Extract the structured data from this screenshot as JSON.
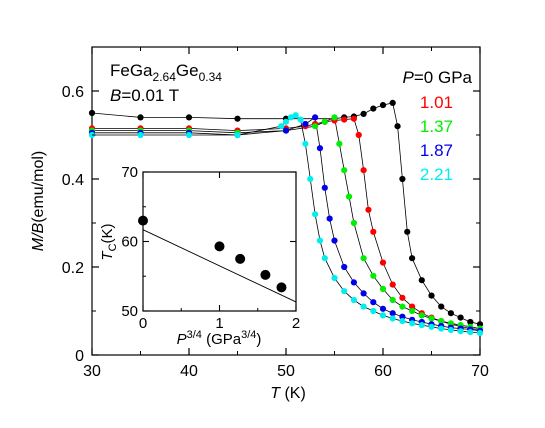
{
  "chart_data": [
    {
      "type": "scatter",
      "xlabel": "T (K)",
      "ylabel": "M/B(emu/mol)",
      "xlim": [
        30,
        70
      ],
      "ylim": [
        0,
        0.7
      ],
      "xticks": [
        "30",
        "40",
        "50",
        "60",
        "70"
      ],
      "yticks": [
        "0",
        "0.2",
        "0.4",
        "0.6"
      ],
      "annotations": {
        "sample": "FeGa2.64Ge0.34",
        "sample_parts": [
          "FeGa",
          "2.64",
          "Ge",
          "0.34"
        ],
        "field_label": "B",
        "field_value": "=0.01 T",
        "pressure_label": "P",
        "pressure_first": "=0 GPa"
      },
      "series": [
        {
          "name": "0 GPa",
          "label": "=0 GPa",
          "color": "#000000",
          "x": [
            30,
            35,
            40,
            45,
            50,
            55,
            56,
            57,
            58,
            59,
            60,
            61,
            61.5,
            62,
            62.5,
            63,
            64,
            65,
            66,
            67,
            68,
            69,
            70
          ],
          "y": [
            0.55,
            0.54,
            0.54,
            0.537,
            0.537,
            0.537,
            0.54,
            0.542,
            0.548,
            0.56,
            0.568,
            0.573,
            0.52,
            0.4,
            0.28,
            0.22,
            0.17,
            0.135,
            0.11,
            0.095,
            0.085,
            0.075,
            0.07
          ]
        },
        {
          "name": "1.01 GPa",
          "label": "1.01",
          "color": "#ff0000",
          "x": [
            30,
            35,
            40,
            45,
            50,
            52,
            53,
            54,
            55,
            56,
            57,
            57.5,
            58,
            58.5,
            59,
            60,
            61,
            62,
            63,
            64,
            65,
            66,
            67,
            68,
            69,
            70
          ],
          "y": [
            0.515,
            0.515,
            0.515,
            0.51,
            0.515,
            0.52,
            0.525,
            0.53,
            0.533,
            0.535,
            0.537,
            0.5,
            0.42,
            0.33,
            0.28,
            0.21,
            0.16,
            0.13,
            0.11,
            0.095,
            0.085,
            0.077,
            0.07,
            0.065,
            0.06,
            0.058
          ]
        },
        {
          "name": "1.37 GPa",
          "label": "1.37",
          "color": "#00ee00",
          "x": [
            30,
            35,
            40,
            45,
            50,
            53,
            54,
            55,
            55.5,
            56,
            56.5,
            57,
            58,
            59,
            60,
            61,
            62,
            63,
            64,
            65,
            66,
            67,
            68,
            69,
            70
          ],
          "y": [
            0.51,
            0.51,
            0.51,
            0.505,
            0.51,
            0.52,
            0.53,
            0.54,
            0.48,
            0.42,
            0.36,
            0.3,
            0.22,
            0.18,
            0.15,
            0.125,
            0.11,
            0.1,
            0.09,
            0.083,
            0.077,
            0.072,
            0.068,
            0.064,
            0.06
          ]
        },
        {
          "name": "1.87 GPa",
          "label": "1.87",
          "color": "#0000ee",
          "x": [
            30,
            35,
            40,
            45,
            50,
            52,
            53,
            53.5,
            54,
            54.5,
            55,
            56,
            57,
            58,
            59,
            60,
            61,
            62,
            63,
            64,
            65,
            66,
            67,
            68,
            69,
            70
          ],
          "y": [
            0.505,
            0.505,
            0.505,
            0.5,
            0.51,
            0.525,
            0.54,
            0.47,
            0.38,
            0.31,
            0.26,
            0.2,
            0.165,
            0.14,
            0.12,
            0.105,
            0.095,
            0.087,
            0.08,
            0.075,
            0.07,
            0.066,
            0.062,
            0.06,
            0.058,
            0.055
          ]
        },
        {
          "name": "2.21 GPa",
          "label": "2.21",
          "color": "#00eeee",
          "x": [
            30,
            35,
            40,
            45,
            49.5,
            50,
            50.5,
            51,
            51.5,
            52,
            52.5,
            53,
            53.5,
            54,
            55,
            56,
            57,
            58,
            59,
            60,
            61,
            62,
            63,
            64,
            65,
            66,
            67,
            68,
            69,
            70
          ],
          "y": [
            0.5,
            0.5,
            0.5,
            0.5,
            0.52,
            0.53,
            0.54,
            0.545,
            0.535,
            0.48,
            0.4,
            0.32,
            0.26,
            0.22,
            0.175,
            0.145,
            0.125,
            0.11,
            0.1,
            0.09,
            0.083,
            0.077,
            0.072,
            0.068,
            0.064,
            0.06,
            0.057,
            0.054,
            0.052,
            0.05
          ]
        }
      ]
    },
    {
      "type": "scatter",
      "xlabel": "P3/4 (GPa3/4)",
      "xlabel_parts": [
        "P",
        "3/4",
        " (GPa",
        "3/4",
        ")"
      ],
      "ylabel": "TC(K)",
      "ylabel_parts": [
        "T",
        "C",
        "(K)"
      ],
      "xlim": [
        0,
        2
      ],
      "ylim": [
        50,
        70
      ],
      "xticks": [
        "0",
        "1",
        "2"
      ],
      "yticks": [
        "50",
        "60",
        "70"
      ],
      "points": {
        "x": [
          0,
          1.0,
          1.27,
          1.6,
          1.81
        ],
        "y": [
          63.0,
          59.3,
          57.5,
          55.2,
          53.4
        ]
      },
      "fit_line": {
        "x": [
          0,
          2
        ],
        "y": [
          61.7,
          51.3
        ]
      }
    }
  ]
}
